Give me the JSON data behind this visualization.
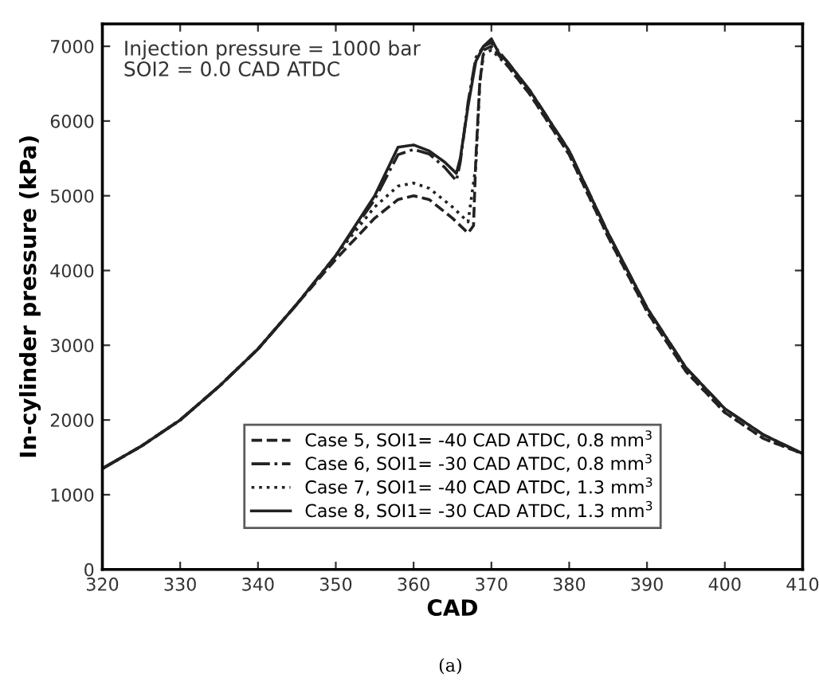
{
  "chart_data": {
    "type": "line",
    "xlabel": "CAD",
    "ylabel": "In-cylinder pressure (kPa)",
    "annotations": [
      "Injection pressure = 1000 bar\nSOI2 = 0.0 CAD ATDC",
      "(a)"
    ],
    "xlim": [
      320,
      410
    ],
    "xticks": [
      320,
      330,
      340,
      350,
      360,
      370,
      380,
      390,
      400,
      410
    ],
    "ylim": [
      0,
      7300
    ],
    "yticks": [
      0,
      1000,
      2000,
      3000,
      4000,
      5000,
      6000,
      7000
    ],
    "grid": false,
    "legend": "bottom",
    "marker": "none",
    "series": [
      {
        "name": "Case 5, SOI1= -40 CAD ATDC, 0.8 mm$^{3}$",
        "color": "#222222",
        "line_style": "dashed",
        "x": [
          320,
          325,
          330,
          335,
          340,
          345,
          350,
          355,
          358,
          360,
          362,
          365,
          367,
          367.7,
          368,
          368.5,
          369,
          370,
          372,
          375,
          380,
          385,
          390,
          395,
          400,
          405,
          410
        ],
        "values": [
          1350,
          1650,
          2000,
          2450,
          2950,
          3550,
          4150,
          4700,
          4950,
          5000,
          4950,
          4700,
          4500,
          4600,
          5500,
          6500,
          6950,
          7000,
          6750,
          6350,
          5550,
          4450,
          3450,
          2650,
          2100,
          1750,
          1550
        ]
      },
      {
        "name": "Case 6, SOI1= -30 CAD ATDC, 0.8 mm$^{3}$",
        "color": "#222222",
        "line_style": "dashdot",
        "x": [
          320,
          325,
          330,
          335,
          340,
          345,
          350,
          355,
          358,
          360,
          362,
          364,
          365.5,
          366,
          367,
          368,
          369,
          370,
          372,
          375,
          380,
          385,
          390,
          395,
          400,
          405,
          410
        ],
        "values": [
          1350,
          1650,
          2000,
          2450,
          2950,
          3550,
          4200,
          4950,
          5550,
          5620,
          5560,
          5380,
          5200,
          5450,
          6250,
          6850,
          7000,
          7050,
          6800,
          6400,
          5600,
          4500,
          3500,
          2700,
          2150,
          1800,
          1550
        ]
      },
      {
        "name": "Case 7, SOI1= -40 CAD ATDC, 1.3 mm$^{3}$",
        "color": "#222222",
        "line_style": "dotted",
        "x": [
          320,
          325,
          330,
          335,
          340,
          345,
          350,
          355,
          358,
          360,
          362,
          365,
          367,
          368,
          368.5,
          369,
          370,
          372,
          375,
          380,
          385,
          390,
          395,
          400,
          405,
          410
        ],
        "values": [
          1350,
          1650,
          2000,
          2450,
          2950,
          3550,
          4200,
          4850,
          5130,
          5170,
          5100,
          4850,
          4650,
          5400,
          6500,
          6900,
          6950,
          6750,
          6350,
          5550,
          4450,
          3450,
          2650,
          2100,
          1750,
          1550
        ]
      },
      {
        "name": "Case 8, SOI1= -30 CAD ATDC, 1.3 mm$^{3}$",
        "color": "#222222",
        "line_style": "solid",
        "x": [
          320,
          325,
          330,
          335,
          340,
          345,
          350,
          355,
          358,
          360,
          362,
          364,
          365.5,
          366,
          367,
          368,
          369,
          370,
          371,
          372,
          375,
          380,
          385,
          390,
          395,
          400,
          405,
          410
        ],
        "values": [
          1350,
          1650,
          2000,
          2450,
          2950,
          3550,
          4200,
          5000,
          5650,
          5680,
          5600,
          5450,
          5300,
          5500,
          6200,
          6800,
          7000,
          7100,
          6900,
          6800,
          6400,
          5600,
          4500,
          3500,
          2700,
          2150,
          1800,
          1550
        ]
      }
    ]
  }
}
